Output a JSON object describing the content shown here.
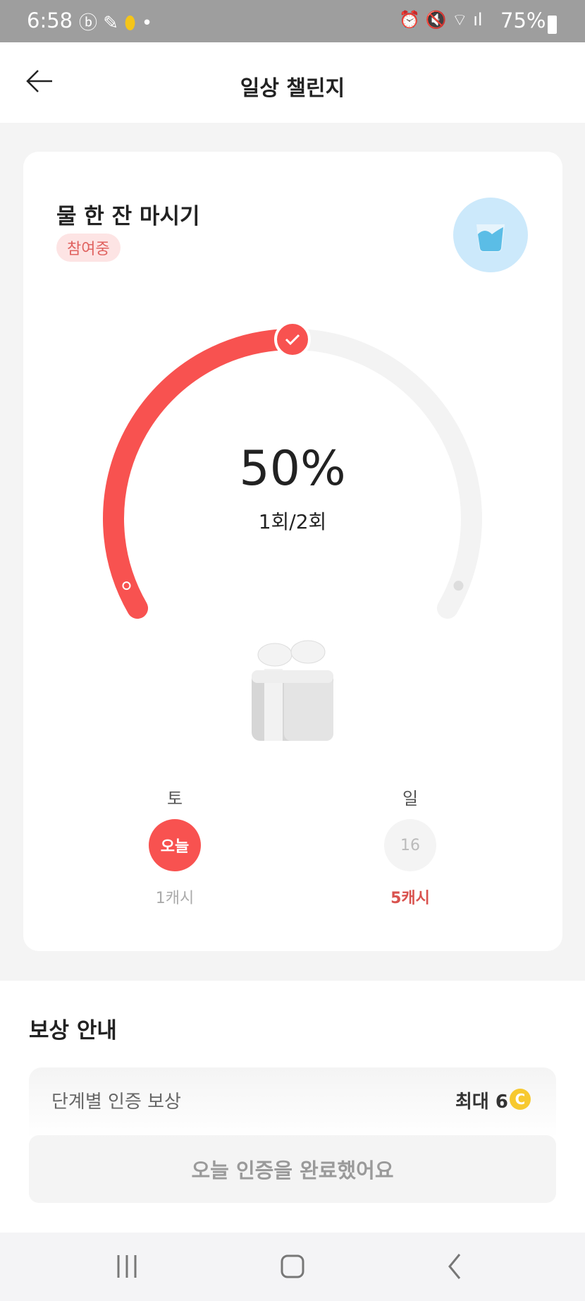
{
  "status_bar": {
    "time": "6:58",
    "battery": "75%",
    "icons": [
      "b-app-icon",
      "shoe-icon",
      "pill-icon",
      "dot-icon",
      "alarm-icon",
      "mute-icon",
      "wifi-icon",
      "signal-icon",
      "battery-icon"
    ]
  },
  "header": {
    "title": "일상 챌린지",
    "back_icon": "arrow-left-icon"
  },
  "challenge": {
    "title": "물 한 잔 마시기",
    "badge": "참여중",
    "icon": "water-glass-icon",
    "progress_percent": 50,
    "percent_label": "50%",
    "count_label": "1회/2회",
    "reward_icon": "gift-box-icon",
    "days": [
      {
        "weekday": "토",
        "label": "오늘",
        "reward": "1캐시",
        "state": "today"
      },
      {
        "weekday": "일",
        "label": "16",
        "reward": "5캐시",
        "state": "upcoming"
      }
    ]
  },
  "reward_info": {
    "title": "보상 안내",
    "row_label": "단계별 인증 보상",
    "row_value": "최대 6",
    "coin_icon": "coin-icon",
    "button_label": "오늘 인증을 완료했어요"
  },
  "colors": {
    "accent": "#f85250",
    "track": "#f3f3f3",
    "badge_bg": "#fde4e4",
    "badge_text": "#e0625f",
    "water_bg": "#cce9fb"
  }
}
